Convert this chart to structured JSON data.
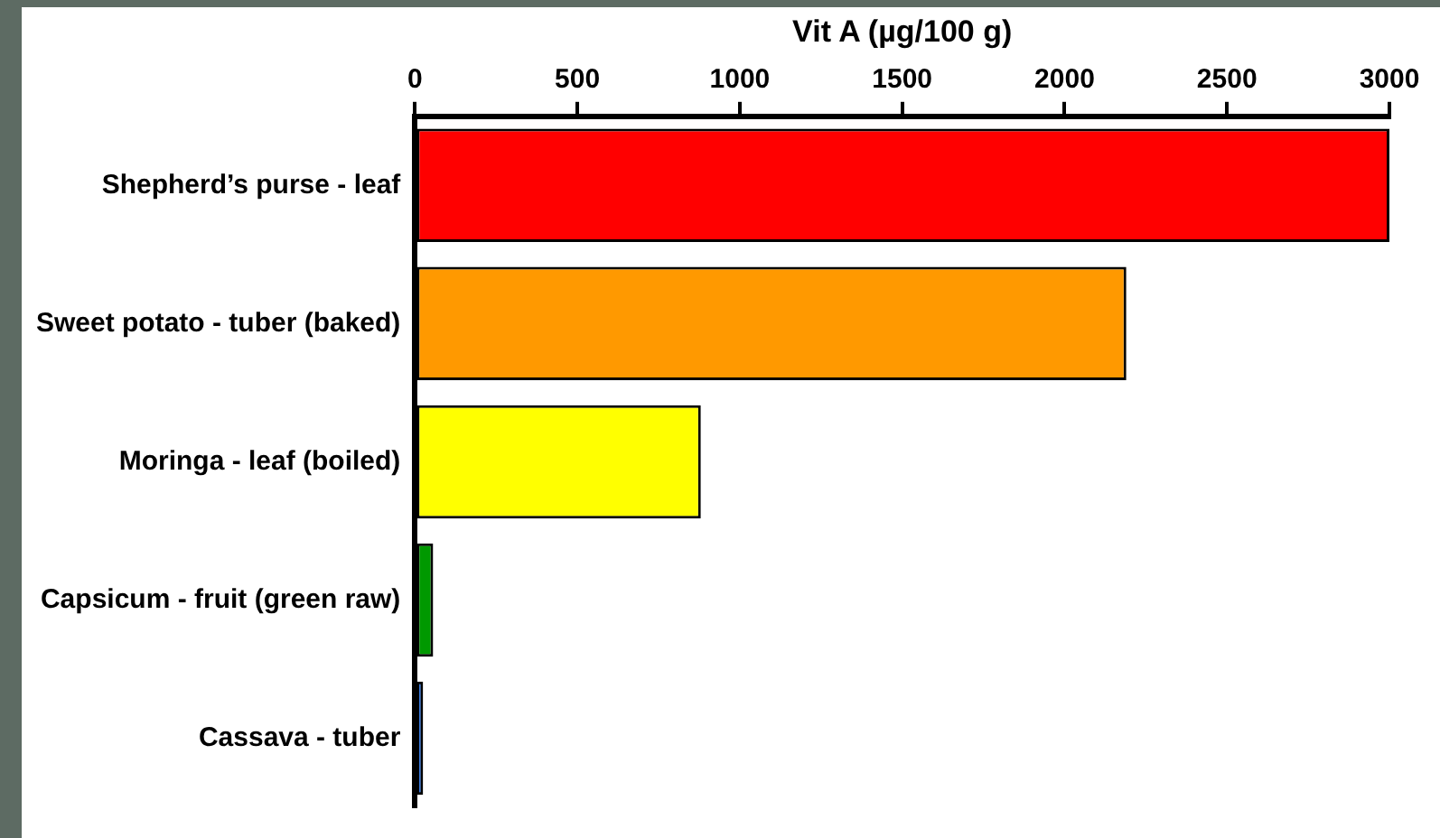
{
  "chart_data": {
    "type": "bar",
    "orientation": "horizontal",
    "xlabel": "Vit A (µg/100 g)",
    "categories": [
      "Shepherd’s purse - leaf",
      "Sweet potato - tuber (baked)",
      "Moringa - leaf (boiled)",
      "Capsicum - fruit (green raw)",
      "Cassava - tuber"
    ],
    "values": [
      3000,
      2190,
      880,
      56,
      25
    ],
    "colors": [
      "#ff0000",
      "#ff9900",
      "#ffff00",
      "#009900",
      "#0066ff"
    ],
    "xlim": [
      0,
      3000
    ],
    "xticks": [
      0,
      500,
      1000,
      1500,
      2000,
      2500,
      3000
    ],
    "grid": false,
    "legend": false
  }
}
